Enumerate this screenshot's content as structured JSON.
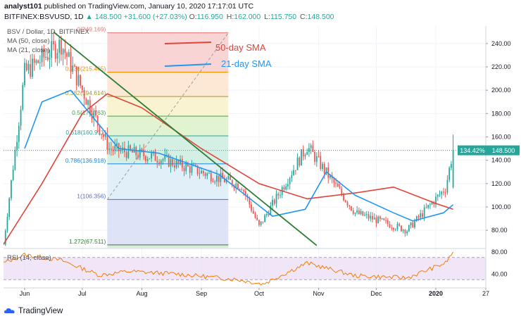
{
  "header": {
    "author": "analyst101",
    "published_text": "published on TradingView.com, January 10, 2020 17:17:01 UTC",
    "symbol": "BITFINEX:BSVUSD, 1D",
    "last": "148.500",
    "change": "+31.600 (+27.03%)",
    "o_label": "O:",
    "o": "116.950",
    "h_label": "H:",
    "h": "162.000",
    "l_label": "L:",
    "l": "115.750",
    "c_label": "C:",
    "c": "148.500"
  },
  "legend": {
    "pair": "BSV / Dollar, 1D, BITFINEX",
    "ma50": "MA (50, close)",
    "ma21": "MA (21, close)",
    "rsi": "RSI (14, close)"
  },
  "annotations": {
    "sma50": "50-day SMA",
    "sma21": "21-day SMA"
  },
  "price_badges": {
    "percent": "134.42%",
    "price": "148.500"
  },
  "branding": {
    "name": "TradingView"
  },
  "colors": {
    "up": "#26a69a",
    "down": "#ef5350",
    "ma50": "#e0453a",
    "ma21": "#2196f3",
    "trendline": "#2e7d32",
    "rsi": "#f57c00",
    "rsi_band": "#e9dcf5"
  },
  "chart_data": [
    {
      "type": "candlestick",
      "title": "BSV / Dollar, 1D, BITFINEX",
      "x_range": [
        "2019-05-21",
        "2020-01-27"
      ],
      "ylim": [
        65,
        255
      ],
      "y_scale": "linear",
      "y_ticks": [
        80,
        100,
        120,
        140,
        160,
        180,
        200,
        220,
        240
      ],
      "x_ticks": [
        "Jun",
        "Jul",
        "Aug",
        "Sep",
        "Oct",
        "Nov",
        "Dec",
        "2020",
        "27"
      ],
      "grid": true,
      "fibonacci": {
        "high": 249.169,
        "low": 67.511,
        "levels": [
          {
            "ratio": "0",
            "price": 249.169,
            "label": "0(249.169)"
          },
          {
            "ratio": "0.236",
            "price": 215.465,
            "label": "0.236(215.465)"
          },
          {
            "ratio": "0.382",
            "price": 194.614,
            "label": "0.382(194.614)"
          },
          {
            "ratio": "0.5",
            "price": 177.763,
            "label": "0.5(177.763)"
          },
          {
            "ratio": "0.618",
            "price": 160.911,
            "label": "0.618(160.911)"
          },
          {
            "ratio": "0.786",
            "price": 136.918,
            "label": "0.786(136.918)"
          },
          {
            "ratio": "1",
            "price": 106.356,
            "label": "1(106.356)"
          },
          {
            "ratio": "1.272",
            "price": 67.511,
            "label": "1.272(67.511)"
          }
        ]
      },
      "trendline": {
        "from": [
          "2019-06-16",
          250
        ],
        "to": [
          "2019-10-31",
          67
        ]
      },
      "key_prices": [
        {
          "date": "2019-05-21",
          "price": 68
        },
        {
          "date": "2019-06-01",
          "price": 215
        },
        {
          "date": "2019-06-20",
          "price": 240
        },
        {
          "date": "2019-07-15",
          "price": 150
        },
        {
          "date": "2019-08-10",
          "price": 142
        },
        {
          "date": "2019-09-22",
          "price": 118
        },
        {
          "date": "2019-10-01",
          "price": 83
        },
        {
          "date": "2019-10-26",
          "price": 152
        },
        {
          "date": "2019-11-20",
          "price": 95
        },
        {
          "date": "2019-12-17",
          "price": 80
        },
        {
          "date": "2020-01-06",
          "price": 116
        },
        {
          "date": "2020-01-10",
          "price": 148.5
        }
      ],
      "series": [
        {
          "name": "MA (50, close)",
          "points": [
            [
              "2019-05-21",
              68
            ],
            [
              "2019-06-10",
              120
            ],
            [
              "2019-07-01",
              180
            ],
            [
              "2019-07-14",
              197
            ],
            [
              "2019-08-01",
              185
            ],
            [
              "2019-09-01",
              150
            ],
            [
              "2019-10-01",
              120
            ],
            [
              "2019-10-26",
              107
            ],
            [
              "2019-11-20",
              112
            ],
            [
              "2019-12-10",
              117
            ],
            [
              "2020-01-01",
              103
            ],
            [
              "2020-01-10",
              98
            ]
          ]
        },
        {
          "name": "MA (21, close)",
          "points": [
            [
              "2019-06-01",
              150
            ],
            [
              "2019-06-10",
              190
            ],
            [
              "2019-06-25",
              200
            ],
            [
              "2019-07-20",
              150
            ],
            [
              "2019-08-10",
              146
            ],
            [
              "2019-09-10",
              128
            ],
            [
              "2019-10-08",
              92
            ],
            [
              "2019-10-25",
              98
            ],
            [
              "2019-11-05",
              130
            ],
            [
              "2019-11-20",
              110
            ],
            [
              "2019-12-10",
              95
            ],
            [
              "2019-12-20",
              88
            ],
            [
              "2020-01-05",
              95
            ],
            [
              "2020-01-10",
              102
            ]
          ]
        }
      ]
    },
    {
      "type": "line",
      "title": "RSI (14, close)",
      "ylim": [
        15,
        85
      ],
      "y_ticks": [
        40,
        80
      ],
      "band": [
        30,
        70
      ],
      "series": [
        {
          "name": "RSI (14, close)",
          "points": [
            [
              "2019-05-21",
              60
            ],
            [
              "2019-06-01",
              75
            ],
            [
              "2019-06-20",
              65
            ],
            [
              "2019-07-10",
              38
            ],
            [
              "2019-07-25",
              45
            ],
            [
              "2019-08-20",
              40
            ],
            [
              "2019-09-20",
              30
            ],
            [
              "2019-10-03",
              22
            ],
            [
              "2019-10-26",
              60
            ],
            [
              "2019-11-20",
              37
            ],
            [
              "2019-12-17",
              33
            ],
            [
              "2020-01-06",
              60
            ],
            [
              "2020-01-10",
              80
            ]
          ]
        }
      ]
    }
  ]
}
